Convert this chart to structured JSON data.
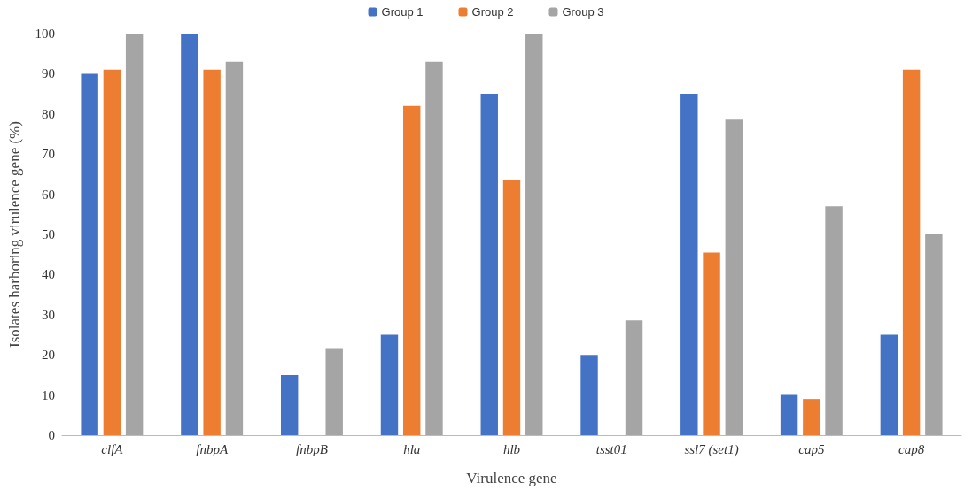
{
  "chart_data": {
    "type": "bar",
    "xlabel": "Virulence gene",
    "ylabel": "Isolates harboring virulence gene (%)",
    "categories": [
      "clfA",
      "fnbpA",
      "fnbpB",
      "hla",
      "hlb",
      "tsst01",
      "ssl7 (set1)",
      "cap5",
      "cap8"
    ],
    "series": [
      {
        "name": "Group 1",
        "color": "#4472c4",
        "values": [
          90,
          100,
          15,
          25,
          85,
          20,
          85,
          10,
          25
        ]
      },
      {
        "name": "Group 2",
        "color": "#ed7d31",
        "values": [
          91,
          91,
          0,
          82,
          63.6,
          0,
          45.5,
          9,
          91
        ]
      },
      {
        "name": "Group 3",
        "color": "#a5a5a5",
        "values": [
          100,
          93,
          21.5,
          93,
          100,
          28.6,
          78.6,
          57,
          50
        ]
      }
    ],
    "ylim": [
      0,
      100
    ],
    "yticks": [
      0,
      10,
      20,
      30,
      40,
      50,
      60,
      70,
      80,
      90,
      100
    ],
    "grid": false,
    "legend": "top"
  }
}
